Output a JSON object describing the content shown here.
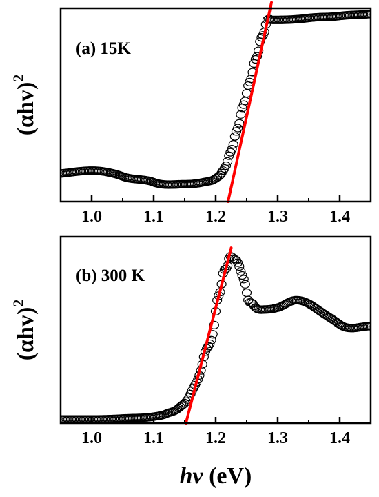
{
  "chart_data": [
    {
      "type": "scatter",
      "panel_label": "(a) 15K",
      "ylabel": {
        "main": "(αhv)",
        "sup": "2"
      },
      "xlim": [
        0.95,
        1.45
      ],
      "x_ticks": [
        1.0,
        1.1,
        1.2,
        1.3,
        1.4
      ],
      "x_tick_labels": [
        "1.0",
        "1.1",
        "1.2",
        "1.3",
        "1.4"
      ],
      "y_ticks_labeled": false,
      "ylim": [
        0,
        1
      ],
      "marker": "open-circle",
      "marker_color": "#000000",
      "fit_line_color": "#ff0000",
      "series": [
        {
          "x": [
            0.95,
            1.0,
            1.05,
            1.1,
            1.15,
            1.18,
            1.2,
            1.21,
            1.22,
            1.23,
            1.24,
            1.25,
            1.26,
            1.27,
            1.28,
            1.29,
            1.3,
            1.35,
            1.4,
            1.45
          ],
          "y": [
            0.145,
            0.16,
            0.13,
            0.1,
            0.09,
            0.1,
            0.12,
            0.15,
            0.22,
            0.32,
            0.44,
            0.56,
            0.68,
            0.8,
            0.9,
            0.94,
            0.94,
            0.95,
            0.96,
            0.97
          ]
        }
      ],
      "fit_line": {
        "x": [
          1.22,
          1.29
        ],
        "y": [
          0.0,
          1.03
        ]
      }
    },
    {
      "type": "scatter",
      "panel_label": "(b) 300 K",
      "ylabel": {
        "main": "(αhv)",
        "sup": "2"
      },
      "xlabel": {
        "main": "hv",
        "unit": "(eV)"
      },
      "xlim": [
        0.95,
        1.45
      ],
      "x_ticks": [
        1.0,
        1.1,
        1.2,
        1.3,
        1.4
      ],
      "x_tick_labels": [
        "1.0",
        "1.1",
        "1.2",
        "1.3",
        "1.4"
      ],
      "y_ticks_labeled": false,
      "ylim": [
        0,
        1
      ],
      "marker": "open-circle",
      "marker_color": "#000000",
      "fit_line_color": "#ff0000",
      "series": [
        {
          "x": [
            0.95,
            1.0,
            1.05,
            1.1,
            1.12,
            1.14,
            1.16,
            1.18,
            1.2,
            1.21,
            1.22,
            1.23,
            1.24,
            1.25,
            1.26,
            1.28,
            1.3,
            1.33,
            1.36,
            1.4,
            1.45
          ],
          "y": [
            0.02,
            0.02,
            0.025,
            0.035,
            0.05,
            0.08,
            0.16,
            0.34,
            0.6,
            0.76,
            0.86,
            0.88,
            0.82,
            0.7,
            0.64,
            0.61,
            0.62,
            0.66,
            0.62,
            0.53,
            0.52
          ]
        }
      ],
      "fit_line": {
        "x": [
          1.152,
          1.225
        ],
        "y": [
          0.0,
          0.94
        ]
      }
    }
  ]
}
